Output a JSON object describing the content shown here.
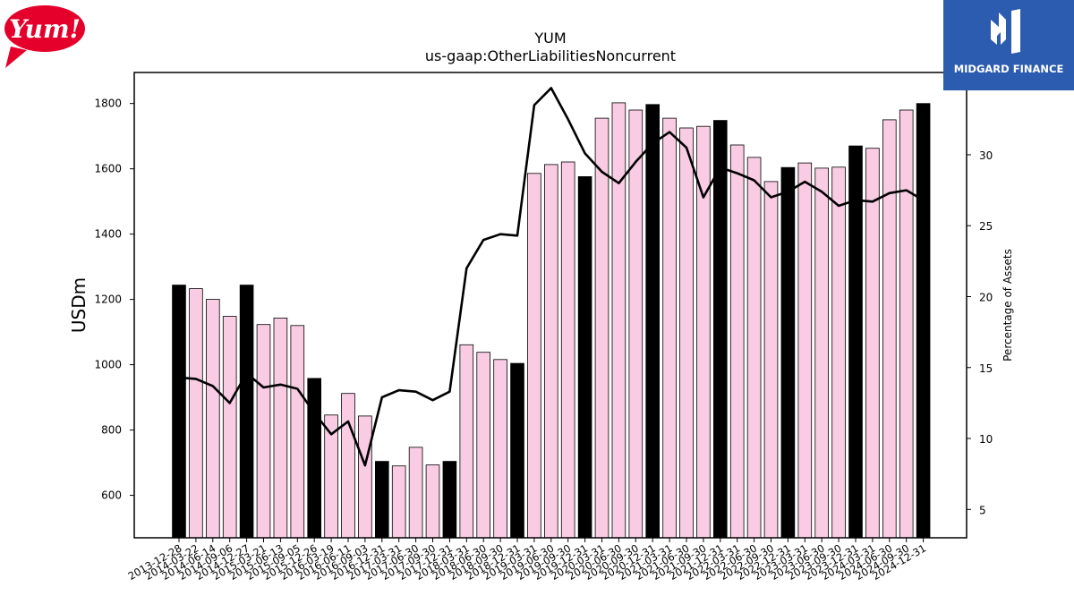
{
  "brand": {
    "left_logo_text": "Yum!",
    "right_logo_text": "MIDGARD FINANCE",
    "left_logo_color": "#e4002b",
    "right_logo_color": "#2b5cb0"
  },
  "chart_data": {
    "type": "bar",
    "title": "YUM",
    "subtitle": "us-gaap:OtherLiabilitiesNoncurrent",
    "ylabel": "USDm",
    "y2label": "Percentage of Assets",
    "ylim": [
      470,
      1895
    ],
    "y2lim": [
      3,
      35.8
    ],
    "yticks": [
      600,
      800,
      1000,
      1200,
      1400,
      1600,
      1800
    ],
    "y2ticks": [
      5,
      10,
      15,
      20,
      25,
      30
    ],
    "colors": {
      "annual_bar": "#000000",
      "quarter_bar": "#f9cce3",
      "line": "#000000"
    },
    "categories": [
      "2013-12-28",
      "2014-03-22",
      "2014-06-14",
      "2014-09-06",
      "2014-12-27",
      "2015-03-21",
      "2015-06-13",
      "2015-09-05",
      "2015-12-26",
      "2016-03-19",
      "2016-06-11",
      "2016-09-03",
      "2016-12-31",
      "2017-03-31",
      "2017-06-30",
      "2017-09-30",
      "2017-12-31",
      "2018-03-31",
      "2018-06-30",
      "2018-09-30",
      "2018-12-31",
      "2019-03-31",
      "2019-06-30",
      "2019-09-30",
      "2019-12-31",
      "2020-03-31",
      "2020-06-30",
      "2020-09-30",
      "2020-12-31",
      "2021-03-31",
      "2021-06-30",
      "2021-09-30",
      "2021-12-31",
      "2022-03-31",
      "2022-06-30",
      "2022-09-30",
      "2022-12-31",
      "2023-03-31",
      "2023-06-30",
      "2023-09-30",
      "2023-12-31",
      "2024-03-31",
      "2024-06-30",
      "2024-09-30",
      "2024-12-31"
    ],
    "series": [
      {
        "kind": "bar",
        "values": [
          1244,
          1233,
          1200,
          1148,
          1244,
          1123,
          1143,
          1120,
          958,
          846,
          912,
          843,
          704,
          690,
          747,
          693,
          704,
          1061,
          1038,
          1016,
          1004,
          1586,
          1613,
          1621,
          1576,
          1755,
          1802,
          1780,
          1797,
          1755,
          1725,
          1730,
          1748,
          1673,
          1635,
          1561,
          1604,
          1618,
          1602,
          1605,
          1670,
          1663,
          1750,
          1780,
          1800
        ],
        "annual": [
          true,
          false,
          false,
          false,
          true,
          false,
          false,
          false,
          true,
          false,
          false,
          false,
          true,
          false,
          false,
          false,
          true,
          false,
          false,
          false,
          true,
          false,
          false,
          false,
          true,
          false,
          false,
          false,
          true,
          false,
          false,
          false,
          true,
          false,
          false,
          false,
          true,
          false,
          false,
          false,
          true,
          false,
          false,
          false,
          true
        ]
      },
      {
        "kind": "line",
        "axis": "right",
        "values": [
          14.3,
          14.2,
          13.7,
          12.5,
          14.6,
          13.6,
          13.8,
          13.5,
          11.8,
          10.3,
          11.2,
          8.1,
          12.9,
          13.4,
          13.3,
          12.7,
          13.3,
          22.0,
          24.0,
          24.4,
          24.3,
          33.5,
          34.7,
          32.5,
          30.1,
          28.8,
          28.0,
          29.5,
          30.8,
          31.6,
          30.5,
          27.0,
          29.1,
          28.7,
          28.2,
          27.0,
          27.4,
          28.1,
          27.4,
          26.4,
          26.8,
          26.7,
          27.3,
          27.5,
          26.8
        ]
      }
    ]
  }
}
